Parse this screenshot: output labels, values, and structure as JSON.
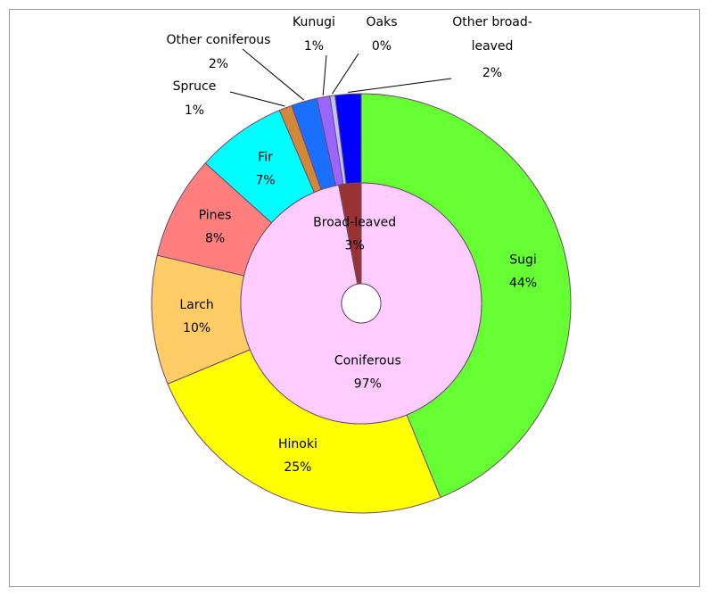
{
  "chart_data": {
    "type": "nested_donut",
    "inner": {
      "categories": [
        "Coniferous",
        "Broad-leaved"
      ],
      "values": [
        97,
        3
      ],
      "value_labels": [
        "97%",
        "3%"
      ],
      "colors": [
        "#ffccff",
        "#993333"
      ]
    },
    "outer": {
      "categories": [
        "Sugi",
        "Hinoki",
        "Larch",
        "Pines",
        "Fir",
        "Spruce",
        "Other coniferous",
        "Kunugi",
        "Oaks",
        "Other broad-leaved"
      ],
      "values": [
        44,
        25,
        10,
        8,
        7,
        1,
        2,
        1,
        0.4,
        2
      ],
      "value_labels": [
        "44%",
        "25%",
        "10%",
        "8%",
        "7%",
        "1%",
        "2%",
        "1%",
        "0%",
        "2%"
      ],
      "colors": [
        "#66ff33",
        "#ffff00",
        "#ffcc66",
        "#ff7f7f",
        "#00ffff",
        "#d2883a",
        "#1a6fff",
        "#9966ff",
        "#c0c0ff",
        "#0000ff"
      ]
    }
  }
}
